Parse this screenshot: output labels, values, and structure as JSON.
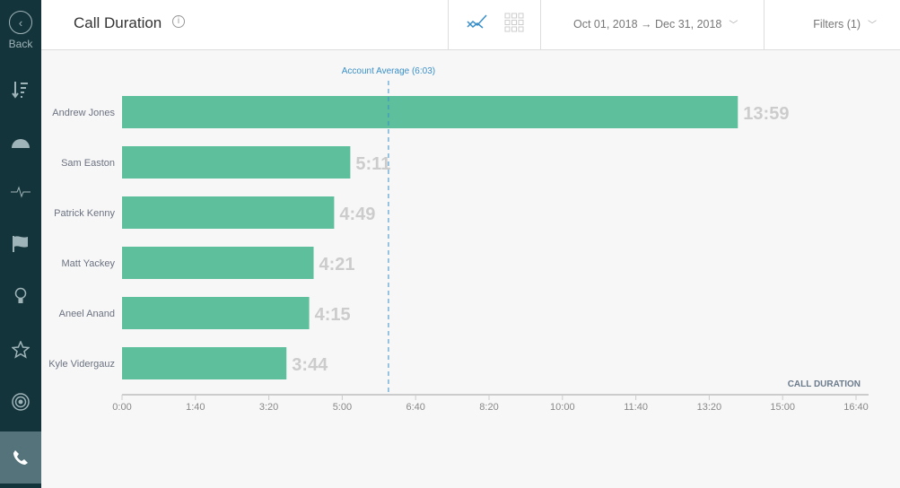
{
  "sidebar": {
    "back_label": "Back",
    "items": [
      "sort-icon",
      "dashboard-gauge-icon",
      "activity-pulse-icon",
      "flag-icon",
      "lightbulb-icon",
      "star-icon",
      "target-icon",
      "phone-icon"
    ],
    "active": "phone-icon"
  },
  "header": {
    "title": "Call Duration",
    "date_range": "Oct 01, 2018 → Dec 31, 2018",
    "filters": "Filters (1)"
  },
  "colors": {
    "bar": "#5dbf9b",
    "accent": "#3a8fc9",
    "sidebar": "#14343c"
  },
  "chart_data": {
    "type": "bar",
    "orientation": "horizontal",
    "categories": [
      "Andrew Jones",
      "Sam Easton",
      "Patrick Kenny",
      "Matt Yackey",
      "Aneel Anand",
      "Kyle Vidergauz"
    ],
    "values": [
      839,
      311,
      289,
      261,
      255,
      224
    ],
    "value_labels": [
      "13:59",
      "5:11",
      "4:49",
      "4:21",
      "4:15",
      "3:44"
    ],
    "xlabel": "CALL DURATION",
    "xlim": [
      0,
      1000
    ],
    "xticks": [
      0,
      100,
      200,
      300,
      400,
      500,
      600,
      700,
      800,
      900,
      1000
    ],
    "xtick_labels": [
      "0:00",
      "1:40",
      "3:20",
      "5:00",
      "6:40",
      "8:20",
      "10:00",
      "11:40",
      "13:20",
      "15:00",
      "16:40"
    ],
    "reference_line": {
      "value": 363,
      "label": "Account Average (6:03)"
    }
  }
}
